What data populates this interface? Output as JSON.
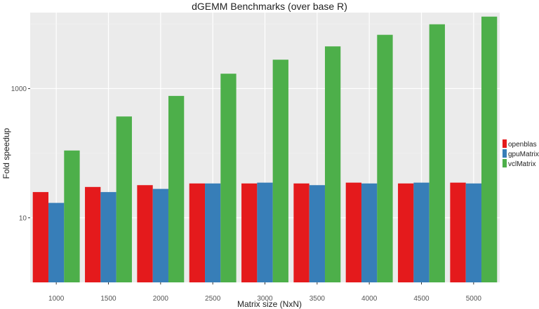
{
  "chart_data": {
    "type": "bar",
    "title": "dGEMM Benchmarks (over base R)",
    "xlabel": "Matrix size (NxN)",
    "ylabel": "Fold speedup",
    "y_scale": "log10",
    "ylim": [
      1,
      15000
    ],
    "y_ticks": [
      10,
      1000
    ],
    "y_tick_labels": [
      "10",
      "1000"
    ],
    "categories": [
      "1000",
      "1500",
      "2000",
      "2500",
      "3000",
      "3500",
      "4000",
      "4500",
      "5000"
    ],
    "series": [
      {
        "name": "openblas",
        "color": "#e41a1c",
        "values": [
          25,
          30,
          32,
          34,
          34,
          34,
          35,
          34,
          35
        ]
      },
      {
        "name": "gpuMatrix",
        "color": "#377eb8",
        "values": [
          17,
          25,
          28,
          34,
          35,
          32,
          34,
          35,
          34
        ]
      },
      {
        "name": "vclMatrix",
        "color": "#4daf4a",
        "values": [
          110,
          370,
          770,
          1700,
          2800,
          4500,
          6800,
          9900,
          13000
        ]
      }
    ],
    "grid": true,
    "legend_position": "right"
  },
  "colors": {
    "panel_background": "#ebebeb",
    "grid_major": "#ffffff",
    "grid_minor": "#f3f3f3"
  }
}
